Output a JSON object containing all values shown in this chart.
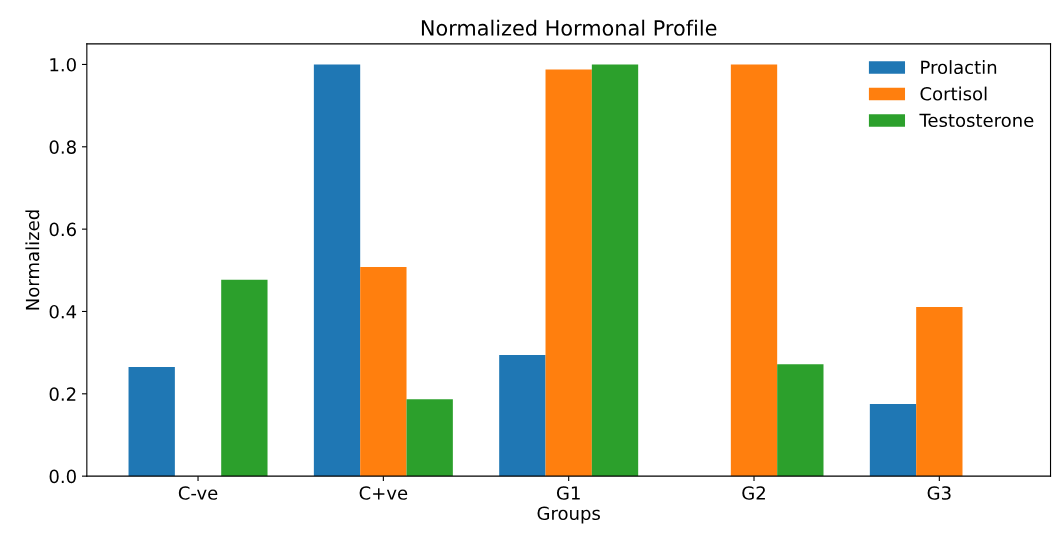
{
  "chart_data": {
    "type": "bar",
    "title": "Normalized Hormonal Profile",
    "xlabel": "Groups",
    "ylabel": "Normalized",
    "categories": [
      "C-ve",
      "C+ve",
      "G1",
      "G2",
      "G3"
    ],
    "series": [
      {
        "name": "Prolactin",
        "color": "#1f77b4",
        "values": [
          0.265,
          1.0,
          0.294,
          0,
          0.175
        ]
      },
      {
        "name": "Cortisol",
        "color": "#ff7f0e",
        "values": [
          0,
          0.508,
          0.988,
          1.0,
          0.411
        ]
      },
      {
        "name": "Testosterone",
        "color": "#2ca02c",
        "values": [
          0.477,
          0.187,
          1.0,
          0.272,
          0
        ]
      }
    ],
    "ylim": [
      0,
      1.05
    ],
    "yticks": [
      {
        "value": 0,
        "label": "0.0"
      },
      {
        "value": 0.2,
        "label": "0.2"
      },
      {
        "value": 0.4,
        "label": "0.4"
      },
      {
        "value": 0.6,
        "label": "0.6"
      },
      {
        "value": 0.8,
        "label": "0.8"
      },
      {
        "value": 1.0,
        "label": "1.0"
      }
    ],
    "legend": "top right",
    "grid": false
  }
}
